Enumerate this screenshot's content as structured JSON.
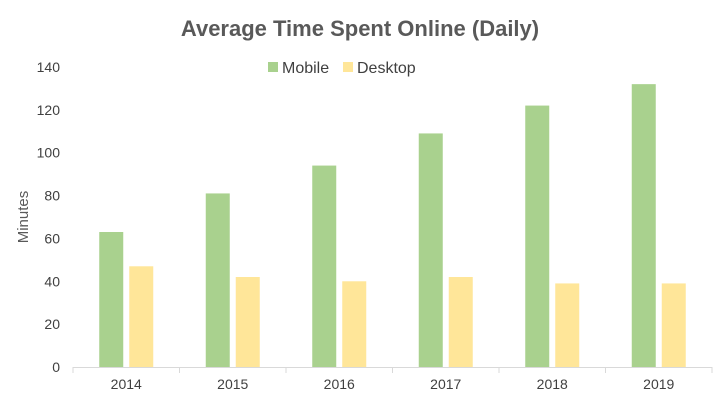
{
  "chart_data": {
    "type": "bar",
    "title": "Average Time Spent Online (Daily)",
    "xlabel": "",
    "ylabel": "Minutes",
    "categories": [
      "2014",
      "2015",
      "2016",
      "2017",
      "2018",
      "2019"
    ],
    "series": [
      {
        "name": "Mobile",
        "color": "#a9d18e",
        "values": [
          63,
          81,
          94,
          109,
          122,
          132
        ]
      },
      {
        "name": "Desktop",
        "color": "#ffe699",
        "values": [
          47,
          42,
          40,
          42,
          39,
          39
        ]
      }
    ],
    "ylim": [
      0,
      140
    ],
    "yticks": [
      "0",
      "20",
      "40",
      "60",
      "80",
      "100",
      "120",
      "140"
    ],
    "grid": false,
    "legend_position": "top"
  }
}
